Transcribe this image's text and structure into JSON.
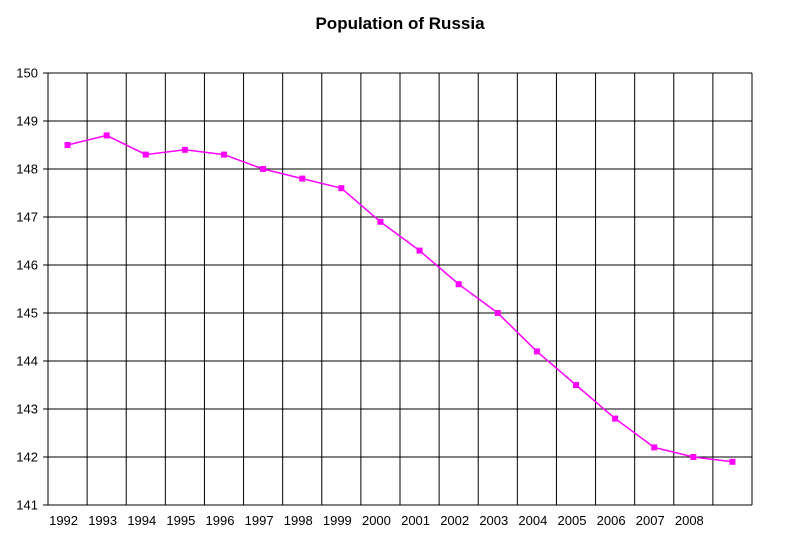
{
  "chart_data": {
    "type": "line",
    "title": "Population of Russia",
    "xlabel": "",
    "ylabel": "",
    "x_tick_labels": [
      "1992",
      "1993",
      "1994",
      "1995",
      "1996",
      "1997",
      "1998",
      "1999",
      "2000",
      "2001",
      "2002",
      "2003",
      "2004",
      "2005",
      "2006",
      "2007",
      "2008"
    ],
    "y_tick_labels": [
      "141",
      "142",
      "143",
      "144",
      "145",
      "146",
      "147",
      "148",
      "149",
      "150"
    ],
    "ylim": [
      141,
      150
    ],
    "grid": true,
    "legend": "none",
    "series": [
      {
        "color": "#ff00ff",
        "marker": "square",
        "x": [
          1992,
          1993,
          1994,
          1995,
          1996,
          1997,
          1998,
          1999,
          2000,
          2001,
          2002,
          2003,
          2004,
          2005,
          2006,
          2007,
          2008,
          2009
        ],
        "values": [
          148.5,
          148.7,
          148.3,
          148.4,
          148.3,
          148.0,
          147.8,
          147.6,
          146.9,
          146.3,
          145.6,
          145.0,
          144.2,
          143.5,
          142.8,
          142.2,
          142.0,
          141.9
        ]
      }
    ]
  }
}
